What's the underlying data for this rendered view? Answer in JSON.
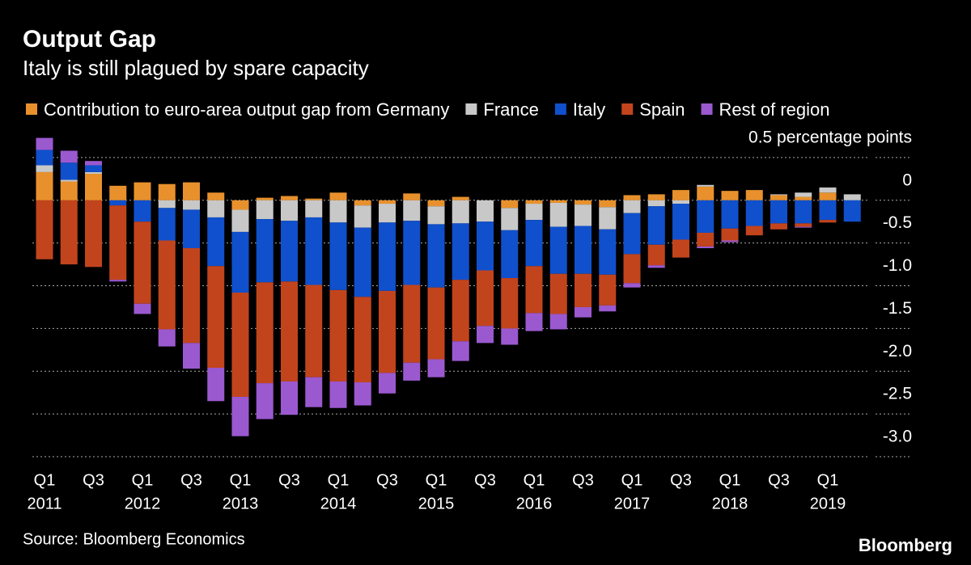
{
  "chart_data": {
    "type": "stacked-bar",
    "title": "Output Gap",
    "subtitle": "Italy is still plagued by spare capacity",
    "source": "Source: Bloomberg Economics",
    "brand": "Bloomberg",
    "categories": [
      "Q1",
      null,
      "Q3",
      null,
      "Q1",
      null,
      "Q3",
      null,
      "Q1",
      null,
      "Q3",
      null,
      "Q1",
      null,
      "Q3",
      null,
      "Q1",
      null,
      "Q3",
      null,
      "Q1",
      null,
      "Q3",
      null,
      "Q1",
      null,
      "Q3",
      null,
      "Q1",
      null,
      "Q3",
      null,
      "Q1",
      null
    ],
    "years": [
      "2011",
      "2012",
      "2013",
      "2014",
      "2015",
      "2016",
      "2017",
      "2018",
      "2019"
    ],
    "ylim": [
      -3.0,
      0.75
    ],
    "yticks": [
      {
        "value": 0.5,
        "label": "0.5 percentage points"
      },
      0,
      {
        "value": -0.5,
        "label": "-0.5"
      },
      {
        "value": -1.0,
        "label": "-1.0"
      },
      {
        "value": -1.5,
        "label": "-1.5"
      },
      {
        "value": -2.0,
        "label": "-2.0"
      },
      {
        "value": -2.5,
        "label": "-2.5"
      },
      {
        "value": -3.0,
        "label": "-3.0"
      }
    ],
    "grid": true,
    "series": [
      {
        "name": "Contribution to euro-area output gap from Germany",
        "color": "#e8912c",
        "values": [
          0.33,
          0.22,
          0.31,
          0.17,
          0.21,
          0.19,
          0.21,
          0.09,
          -0.11,
          0.03,
          0.05,
          0.02,
          0.09,
          -0.06,
          -0.04,
          0.08,
          -0.07,
          0.04,
          0,
          -0.09,
          -0.04,
          -0.03,
          -0.05,
          -0.08,
          0.06,
          0.07,
          0.12,
          0.16,
          0.11,
          0.12,
          0.06,
          0.04,
          0.09,
          0
        ]
      },
      {
        "name": "France",
        "color": "#c8c8c8",
        "values": [
          0.08,
          0.02,
          0.02,
          0,
          0,
          -0.09,
          -0.11,
          -0.2,
          -0.26,
          -0.22,
          -0.24,
          -0.2,
          -0.26,
          -0.26,
          -0.22,
          -0.24,
          -0.21,
          -0.27,
          -0.25,
          -0.26,
          -0.19,
          -0.28,
          -0.25,
          -0.26,
          -0.15,
          -0.07,
          -0.04,
          0.02,
          0,
          0,
          0.01,
          0.05,
          0.06,
          0.07
        ]
      },
      {
        "name": "Italy",
        "color": "#1050cc",
        "values": [
          0.18,
          0.2,
          0.08,
          -0.06,
          -0.25,
          -0.38,
          -0.45,
          -0.57,
          -0.71,
          -0.74,
          -0.71,
          -0.79,
          -0.79,
          -0.81,
          -0.8,
          -0.75,
          -0.74,
          -0.66,
          -0.57,
          -0.56,
          -0.54,
          -0.55,
          -0.56,
          -0.53,
          -0.48,
          -0.45,
          -0.42,
          -0.38,
          -0.33,
          -0.3,
          -0.27,
          -0.27,
          -0.23,
          -0.25
        ]
      },
      {
        "name": "Spain",
        "color": "#c2441d",
        "values": [
          -0.69,
          -0.75,
          -0.78,
          -0.87,
          -0.96,
          -1.04,
          -1.11,
          -1.19,
          -1.22,
          -1.18,
          -1.17,
          -1.08,
          -1.07,
          -1.0,
          -0.96,
          -0.91,
          -0.84,
          -0.72,
          -0.65,
          -0.59,
          -0.55,
          -0.47,
          -0.39,
          -0.36,
          -0.34,
          -0.24,
          -0.21,
          -0.16,
          -0.14,
          -0.11,
          -0.07,
          -0.04,
          -0.03,
          0
        ]
      },
      {
        "name": "Rest of region",
        "color": "#9b59d0",
        "values": [
          0.14,
          0.14,
          0.05,
          -0.02,
          -0.12,
          -0.2,
          -0.3,
          -0.39,
          -0.46,
          -0.42,
          -0.39,
          -0.35,
          -0.31,
          -0.27,
          -0.24,
          -0.21,
          -0.21,
          -0.23,
          -0.2,
          -0.19,
          -0.21,
          -0.18,
          -0.12,
          -0.07,
          -0.05,
          -0.03,
          0,
          -0.02,
          -0.02,
          0,
          0,
          -0.01,
          0,
          0
        ]
      }
    ]
  }
}
